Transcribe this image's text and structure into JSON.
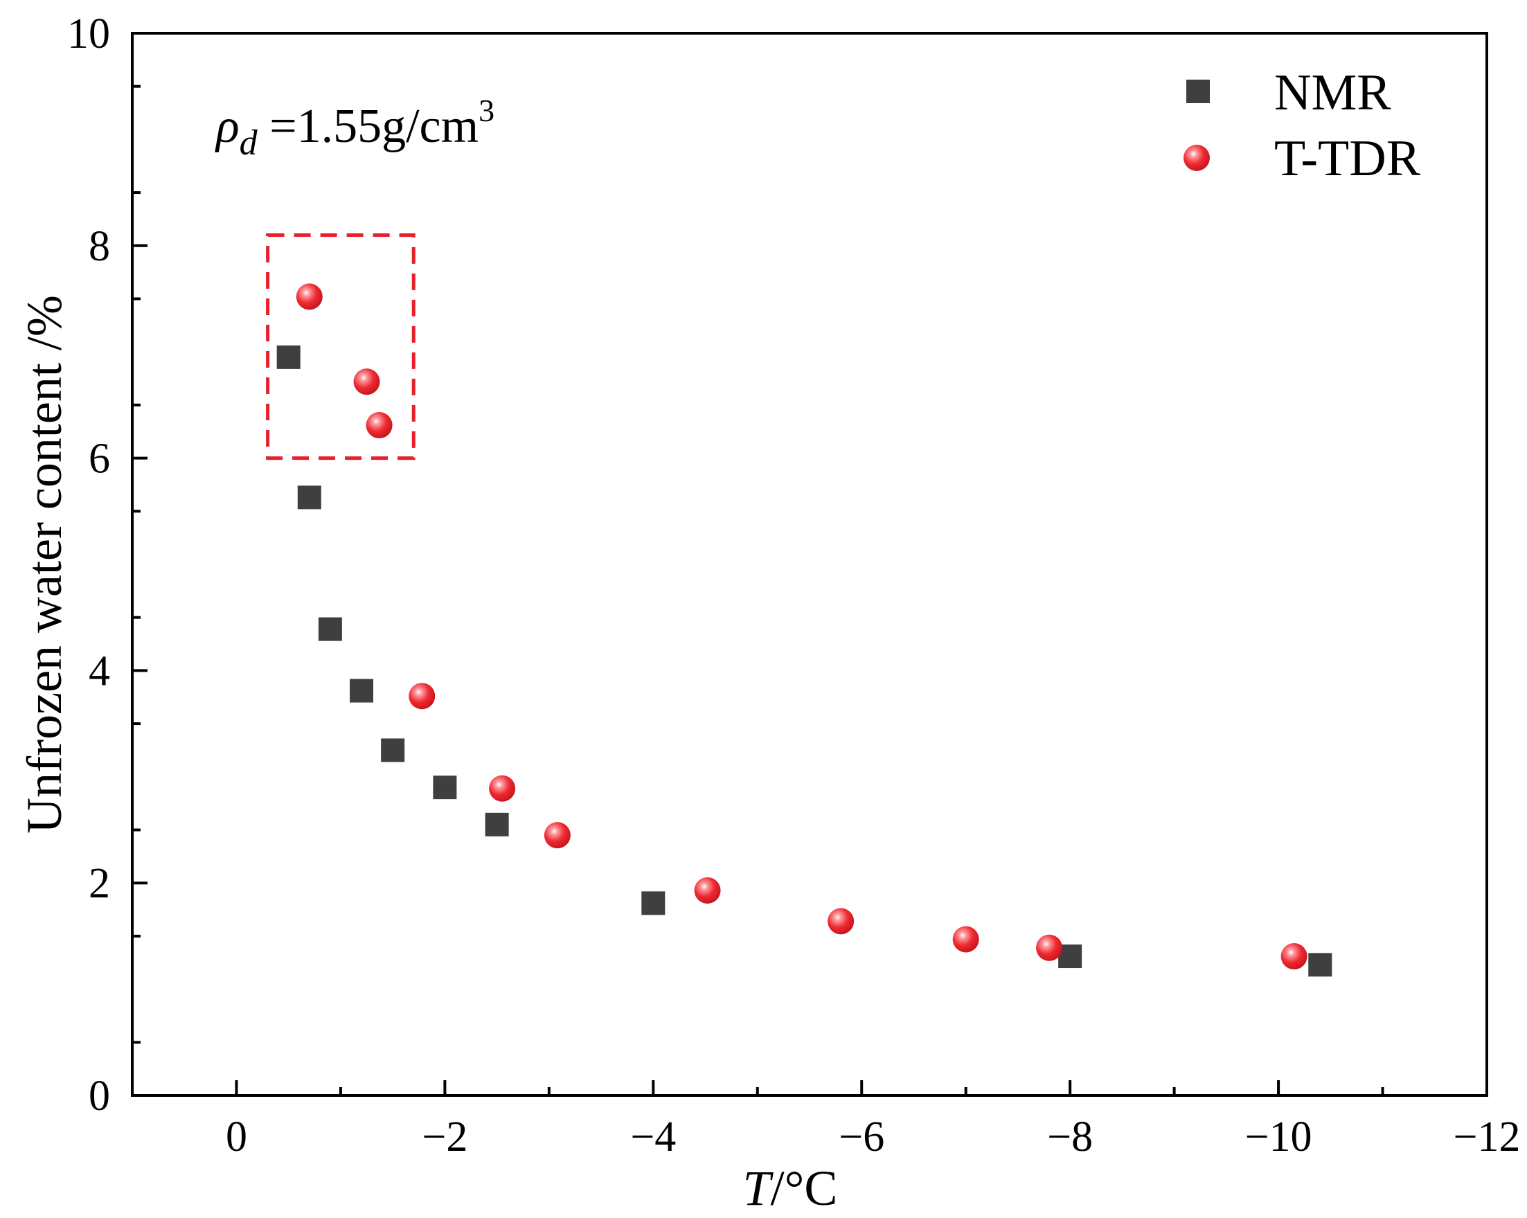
{
  "chart_data": {
    "type": "scatter",
    "title": "",
    "xlabel_var": "T",
    "xlabel_unit": "/°C",
    "ylabel": "Unfrozen water content /%",
    "xlim": [
      1,
      -12
    ],
    "ylim": [
      0,
      10
    ],
    "x_ticks": [
      0,
      -2,
      -4,
      -6,
      -8,
      -10,
      -12
    ],
    "x_tick_labels": [
      "0",
      "−2",
      "−4",
      "−6",
      "−8",
      "−10",
      "−12"
    ],
    "y_ticks": [
      0,
      2,
      4,
      6,
      8,
      10
    ],
    "y_tick_labels": [
      "0",
      "2",
      "4",
      "6",
      "8",
      "10"
    ],
    "annotation": {
      "symbol": "ρ",
      "subscript": "d",
      "text": " =1.55g/cm",
      "superscript": "3"
    },
    "highlight_box": {
      "x": [
        -0.3,
        -1.7
      ],
      "y": [
        6.0,
        8.1
      ],
      "color": "#e8202a"
    },
    "legend_position": "top-right",
    "series": [
      {
        "name": "NMR",
        "marker": "square",
        "color": "#3f3f3f",
        "x": [
          -0.5,
          -0.7,
          -0.9,
          -1.2,
          -1.5,
          -2.0,
          -2.5,
          -4.0,
          -8.0,
          -10.4
        ],
        "y": [
          6.95,
          5.63,
          4.39,
          3.81,
          3.25,
          2.9,
          2.55,
          1.81,
          1.31,
          1.23
        ]
      },
      {
        "name": "T-TDR",
        "marker": "sphere",
        "color": "#e8202a",
        "x": [
          -0.7,
          -1.25,
          -1.37,
          -1.78,
          -2.55,
          -3.08,
          -4.52,
          -5.8,
          -7.0,
          -7.8,
          -10.15
        ],
        "y": [
          7.52,
          6.72,
          6.31,
          3.76,
          2.89,
          2.45,
          1.93,
          1.64,
          1.47,
          1.39,
          1.31
        ]
      }
    ]
  }
}
